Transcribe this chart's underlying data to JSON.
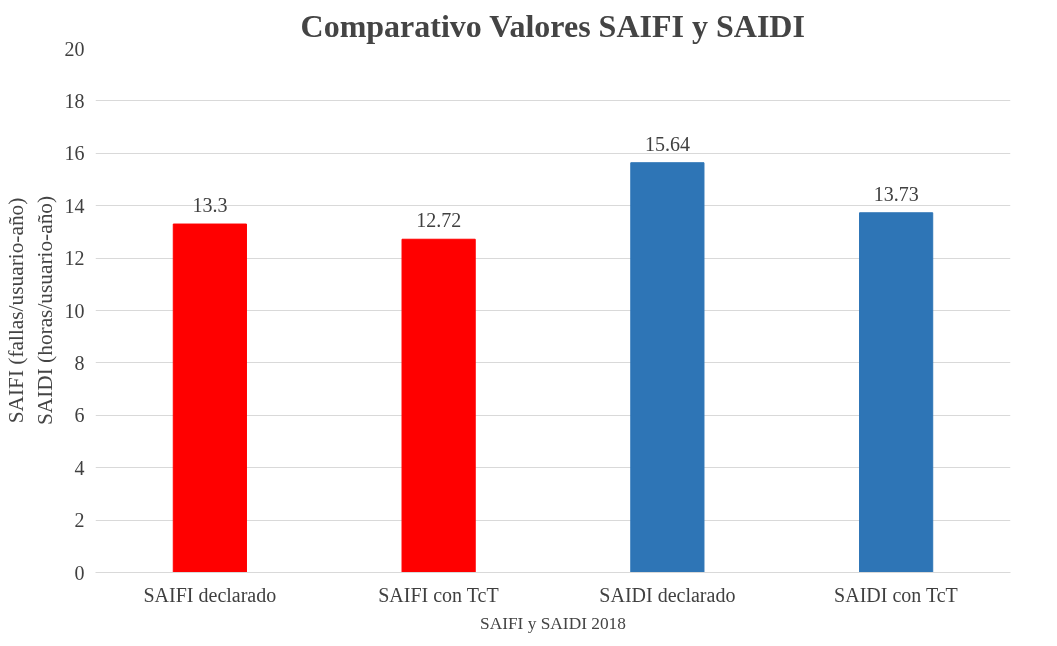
{
  "chart_data": {
    "type": "bar",
    "title": "Comparativo Valores SAIFI y SAIDI",
    "xlabel": "SAIFI y SAIDI 2018",
    "ylabel": "SAIFI (fallas/usuario-año)\nSAIDI (horas/usuario-año)",
    "categories": [
      "SAIFI declarado",
      "SAIFI con TcT",
      "SAIDI declarado",
      "SAIDI con TcT"
    ],
    "values": [
      13.3,
      12.72,
      15.64,
      13.73
    ],
    "colors": [
      "#ff0000",
      "#ff0000",
      "#2e75b6",
      "#2e75b6"
    ],
    "ylim": [
      0,
      20
    ],
    "yticks": [
      0,
      2,
      4,
      6,
      8,
      10,
      12,
      14,
      16,
      18,
      20
    ],
    "grid": "y",
    "data_labels": true
  }
}
